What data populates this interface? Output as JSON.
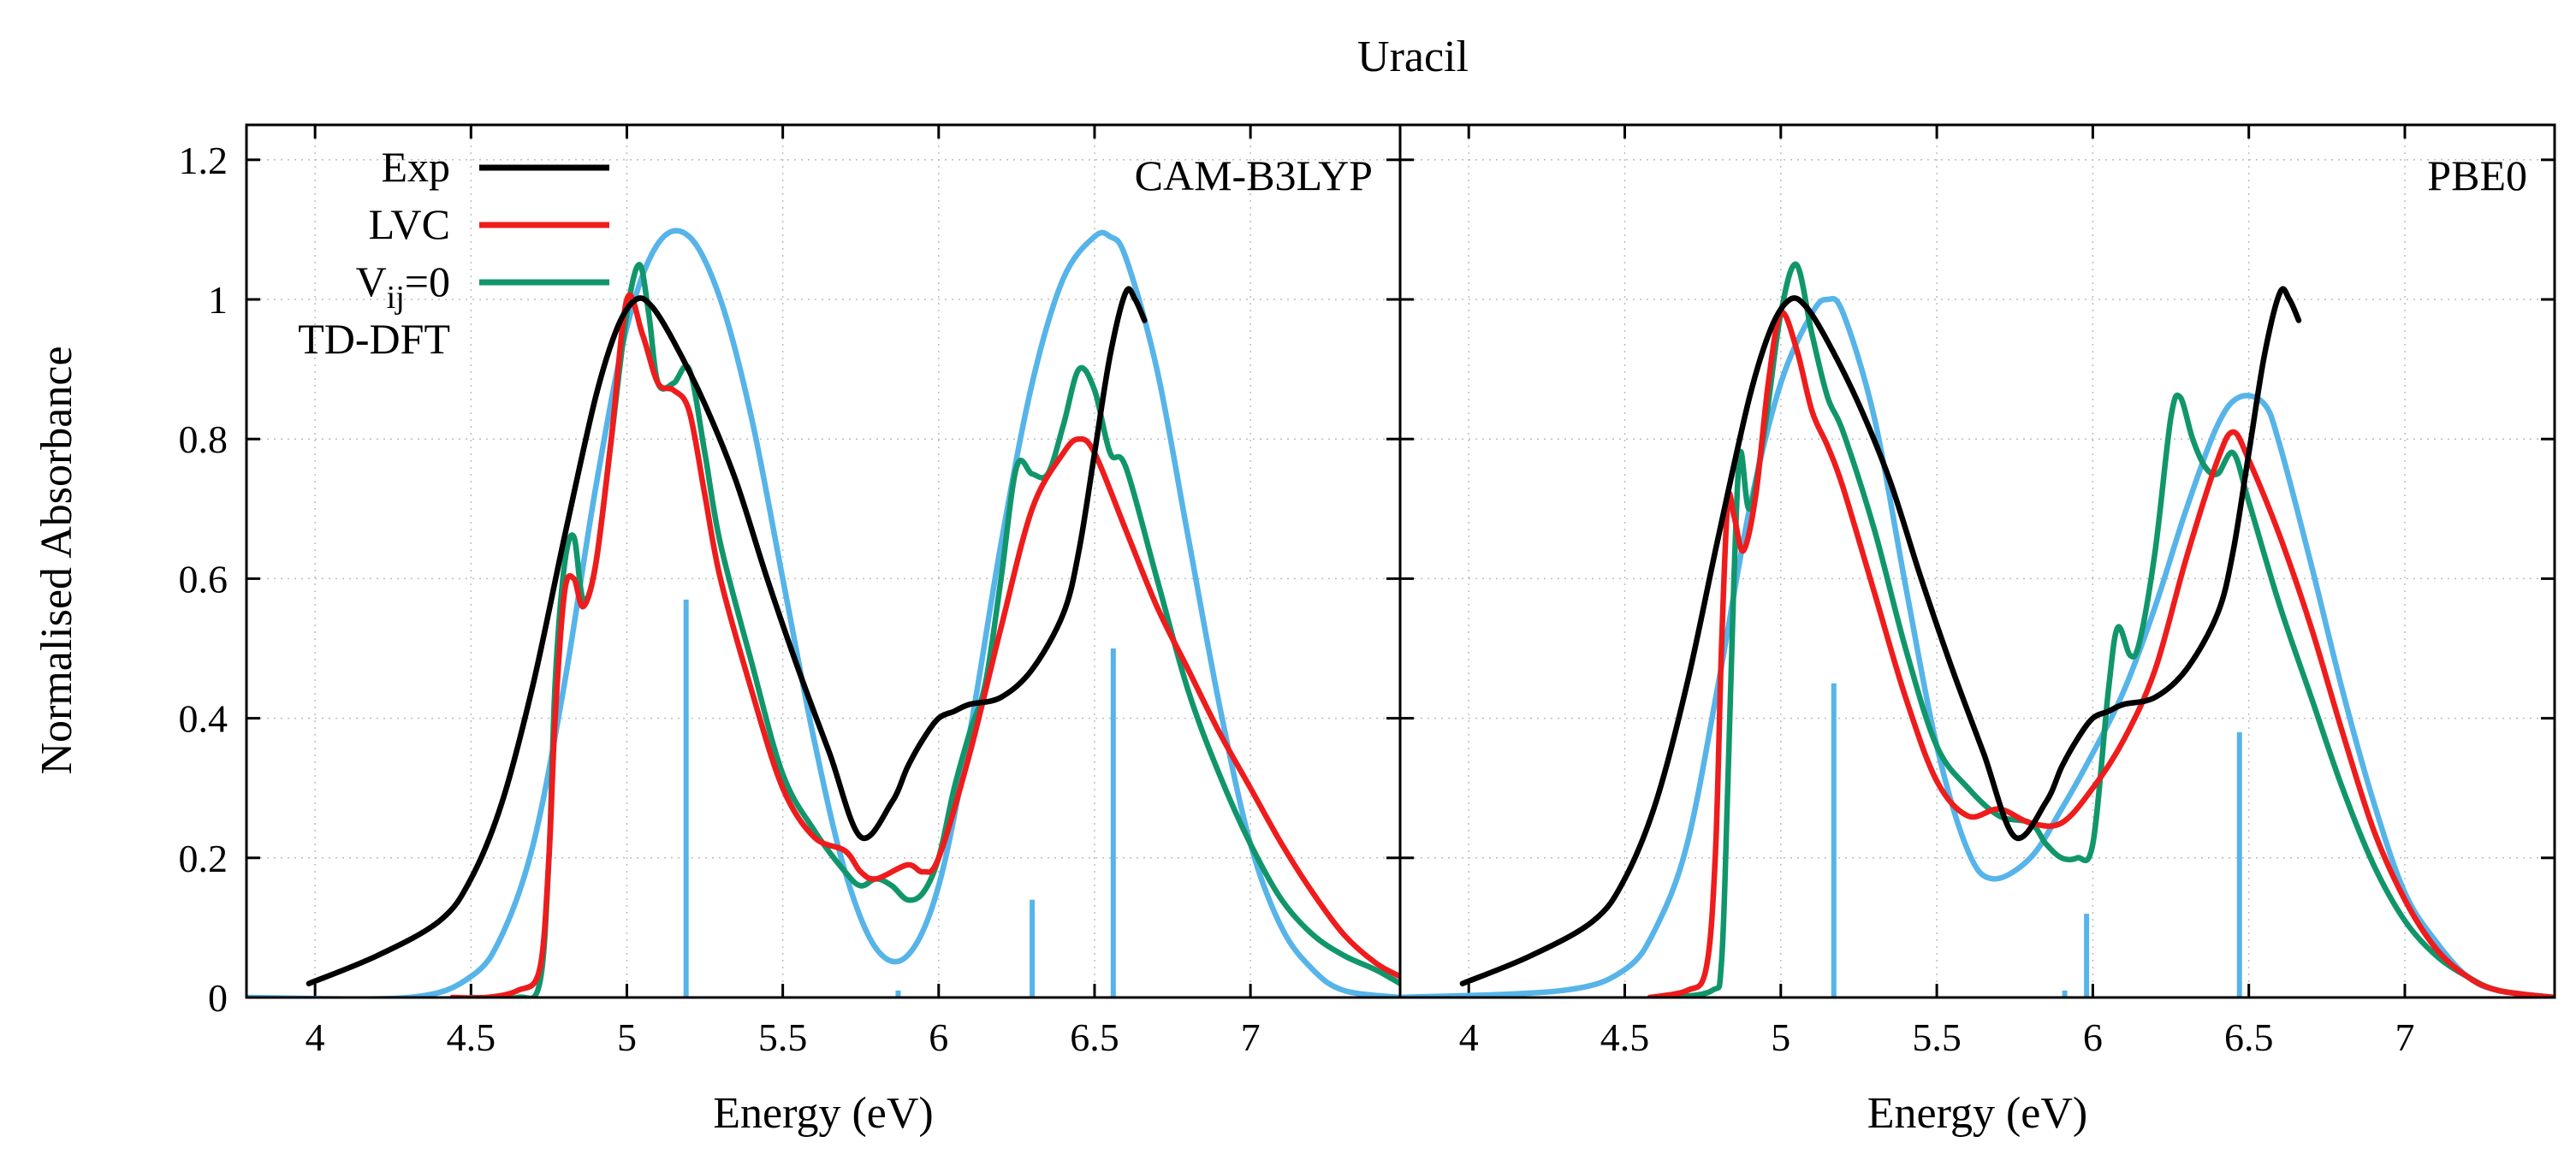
{
  "title": "Uracil",
  "ylabel": "Normalised Absorbance",
  "colors": {
    "Exp": "#000000",
    "LVC": "#ee1c1c",
    "Vij0": "#11966b",
    "TDDFT": "#56b4e9"
  },
  "legend": [
    {
      "key": "Exp",
      "label_main": "Exp",
      "label_sub": "",
      "label_tail": ""
    },
    {
      "key": "LVC",
      "label_main": "LVC",
      "label_sub": "",
      "label_tail": ""
    },
    {
      "key": "Vij0",
      "label_main": "V",
      "label_sub": "ij",
      "label_tail": "=0"
    },
    {
      "key": "TDDFT",
      "label_main": "TD-DFT",
      "label_sub": "",
      "label_tail": ""
    }
  ],
  "chart_data": [
    {
      "type": "line",
      "panel_label": "CAM-B3LYP",
      "xlabel": "Energy (eV)",
      "xlim": [
        3.78,
        7.48
      ],
      "ylim": [
        0,
        1.25
      ],
      "xticks": [
        4,
        4.5,
        5,
        5.5,
        6,
        6.5,
        7
      ],
      "xtick_labels": [
        "4",
        "4.5",
        "5",
        "5.5",
        "6",
        "6.5",
        "7"
      ],
      "yticks": [
        0,
        0.2,
        0.4,
        0.6,
        0.8,
        1,
        1.2
      ],
      "ytick_labels": [
        "0",
        "0.2",
        "0.4",
        "0.6",
        "0.8",
        "1",
        "1.2"
      ],
      "series": [
        {
          "name": "Exp",
          "x": [
            3.98,
            4.2,
            4.4,
            4.5,
            4.6,
            4.7,
            4.8,
            4.9,
            4.97,
            5.03,
            5.08,
            5.15,
            5.25,
            5.35,
            5.45,
            5.55,
            5.65,
            5.75,
            5.85,
            5.9,
            5.95,
            6.0,
            6.05,
            6.1,
            6.2,
            6.3,
            6.4,
            6.45,
            6.5,
            6.55,
            6.6,
            6.63,
            6.66
          ],
          "y": [
            0.02,
            0.06,
            0.11,
            0.17,
            0.28,
            0.45,
            0.66,
            0.86,
            0.96,
            1.0,
            0.99,
            0.94,
            0.85,
            0.74,
            0.6,
            0.47,
            0.35,
            0.23,
            0.28,
            0.33,
            0.37,
            0.4,
            0.41,
            0.42,
            0.43,
            0.47,
            0.55,
            0.64,
            0.78,
            0.92,
            1.01,
            1.0,
            0.97
          ]
        },
        {
          "name": "LVC",
          "x": [
            4.44,
            4.55,
            4.65,
            4.72,
            4.75,
            4.77,
            4.8,
            4.83,
            4.86,
            4.9,
            4.95,
            5.0,
            5.05,
            5.1,
            5.15,
            5.2,
            5.25,
            5.3,
            5.4,
            5.5,
            5.6,
            5.7,
            5.75,
            5.8,
            5.9,
            5.95,
            6.0,
            6.1,
            6.2,
            6.3,
            6.4,
            6.45,
            6.5,
            6.6,
            6.7,
            6.8,
            6.9,
            7.0,
            7.1,
            7.2,
            7.3,
            7.4,
            7.48
          ],
          "y": [
            0,
            0.0,
            0.01,
            0.04,
            0.2,
            0.4,
            0.58,
            0.6,
            0.56,
            0.62,
            0.8,
            1.0,
            0.95,
            0.88,
            0.87,
            0.84,
            0.72,
            0.6,
            0.44,
            0.3,
            0.23,
            0.21,
            0.18,
            0.17,
            0.19,
            0.18,
            0.2,
            0.35,
            0.53,
            0.7,
            0.78,
            0.8,
            0.78,
            0.67,
            0.56,
            0.47,
            0.38,
            0.3,
            0.22,
            0.15,
            0.09,
            0.05,
            0.03
          ]
        },
        {
          "name": "Vij0",
          "x": [
            4.5,
            4.65,
            4.72,
            4.75,
            4.77,
            4.8,
            4.83,
            4.86,
            4.9,
            4.95,
            5.0,
            5.04,
            5.07,
            5.1,
            5.15,
            5.2,
            5.25,
            5.3,
            5.4,
            5.5,
            5.6,
            5.7,
            5.75,
            5.8,
            5.85,
            5.9,
            5.95,
            6.0,
            6.05,
            6.1,
            6.15,
            6.2,
            6.25,
            6.3,
            6.35,
            6.4,
            6.45,
            6.5,
            6.55,
            6.6,
            6.7,
            6.8,
            6.9,
            7.0,
            7.1,
            7.2,
            7.3,
            7.4,
            7.48
          ],
          "y": [
            0,
            0.0,
            0.02,
            0.2,
            0.45,
            0.62,
            0.66,
            0.57,
            0.62,
            0.8,
            0.98,
            1.05,
            0.98,
            0.88,
            0.88,
            0.9,
            0.78,
            0.65,
            0.48,
            0.32,
            0.24,
            0.18,
            0.16,
            0.17,
            0.16,
            0.14,
            0.15,
            0.2,
            0.3,
            0.38,
            0.45,
            0.6,
            0.76,
            0.75,
            0.75,
            0.82,
            0.9,
            0.87,
            0.78,
            0.76,
            0.6,
            0.44,
            0.32,
            0.22,
            0.14,
            0.09,
            0.06,
            0.04,
            0.02
          ]
        },
        {
          "name": "TD-DFT",
          "x": [
            3.78,
            4.3,
            4.5,
            4.6,
            4.7,
            4.8,
            4.9,
            5.0,
            5.1,
            5.2,
            5.3,
            5.4,
            5.5,
            5.6,
            5.7,
            5.8,
            5.9,
            6.0,
            6.1,
            6.2,
            6.3,
            6.4,
            6.5,
            6.55,
            6.6,
            6.7,
            6.8,
            6.9,
            7.0,
            7.1,
            7.2,
            7.3,
            7.48
          ],
          "y": [
            0,
            0.0,
            0.03,
            0.09,
            0.22,
            0.45,
            0.73,
            0.96,
            1.08,
            1.09,
            1.0,
            0.83,
            0.6,
            0.37,
            0.18,
            0.07,
            0.06,
            0.16,
            0.38,
            0.65,
            0.88,
            1.03,
            1.09,
            1.09,
            1.06,
            0.9,
            0.66,
            0.42,
            0.22,
            0.1,
            0.04,
            0.01,
            0
          ]
        }
      ],
      "sticks": [
        {
          "x": 5.19,
          "y": 0.57
        },
        {
          "x": 5.87,
          "y": 0.01
        },
        {
          "x": 6.3,
          "y": 0.14
        },
        {
          "x": 6.56,
          "y": 0.5
        }
      ]
    },
    {
      "type": "line",
      "panel_label": "PBE0",
      "xlabel": "Energy (eV)",
      "xlim": [
        3.78,
        7.48
      ],
      "ylim": [
        0,
        1.25
      ],
      "xticks": [
        4,
        4.5,
        5,
        5.5,
        6,
        6.5,
        7
      ],
      "xtick_labels": [
        "4",
        "4.5",
        "5",
        "5.5",
        "6",
        "6.5",
        "7"
      ],
      "yticks": [
        0,
        0.2,
        0.4,
        0.6,
        0.8,
        1,
        1.2
      ],
      "ytick_labels": [
        "",
        "",
        "",
        "",
        "",
        "",
        ""
      ],
      "series": [
        {
          "name": "Exp",
          "x": [
            3.98,
            4.2,
            4.4,
            4.5,
            4.6,
            4.7,
            4.8,
            4.9,
            4.97,
            5.03,
            5.08,
            5.15,
            5.25,
            5.35,
            5.45,
            5.55,
            5.65,
            5.75,
            5.85,
            5.9,
            5.95,
            6.0,
            6.05,
            6.1,
            6.2,
            6.3,
            6.4,
            6.45,
            6.5,
            6.55,
            6.6,
            6.63,
            6.66
          ],
          "y": [
            0.02,
            0.06,
            0.11,
            0.17,
            0.28,
            0.45,
            0.66,
            0.86,
            0.96,
            1.0,
            0.99,
            0.94,
            0.85,
            0.74,
            0.6,
            0.47,
            0.35,
            0.23,
            0.28,
            0.33,
            0.37,
            0.4,
            0.41,
            0.42,
            0.43,
            0.47,
            0.55,
            0.64,
            0.78,
            0.92,
            1.01,
            1.0,
            0.97
          ]
        },
        {
          "name": "LVC",
          "x": [
            4.58,
            4.7,
            4.76,
            4.79,
            4.81,
            4.83,
            4.85,
            4.88,
            4.92,
            4.96,
            5.0,
            5.05,
            5.1,
            5.15,
            5.2,
            5.3,
            5.4,
            5.5,
            5.6,
            5.7,
            5.8,
            5.9,
            6.0,
            6.1,
            6.2,
            6.3,
            6.4,
            6.45,
            6.5,
            6.6,
            6.7,
            6.8,
            6.9,
            7.0,
            7.1,
            7.2,
            7.3,
            7.48
          ],
          "y": [
            0,
            0.01,
            0.04,
            0.2,
            0.5,
            0.71,
            0.69,
            0.64,
            0.72,
            0.88,
            0.98,
            0.93,
            0.84,
            0.79,
            0.73,
            0.58,
            0.43,
            0.31,
            0.26,
            0.27,
            0.25,
            0.25,
            0.3,
            0.37,
            0.47,
            0.63,
            0.77,
            0.81,
            0.77,
            0.66,
            0.53,
            0.38,
            0.24,
            0.14,
            0.07,
            0.03,
            0.01,
            0
          ]
        },
        {
          "name": "Vij0",
          "x": [
            4.65,
            4.78,
            4.81,
            4.83,
            4.85,
            4.87,
            4.9,
            4.95,
            5.0,
            5.05,
            5.1,
            5.15,
            5.2,
            5.3,
            5.4,
            5.5,
            5.6,
            5.7,
            5.8,
            5.85,
            5.9,
            5.95,
            6.0,
            6.05,
            6.08,
            6.12,
            6.15,
            6.2,
            6.25,
            6.28,
            6.32,
            6.36,
            6.4,
            6.45,
            6.5,
            6.6,
            6.7,
            6.8,
            6.9,
            7.0,
            7.1,
            7.2,
            7.3,
            7.48
          ],
          "y": [
            0,
            0.01,
            0.05,
            0.3,
            0.6,
            0.78,
            0.7,
            0.82,
            0.98,
            1.05,
            0.95,
            0.86,
            0.81,
            0.67,
            0.5,
            0.36,
            0.3,
            0.26,
            0.25,
            0.22,
            0.2,
            0.2,
            0.22,
            0.44,
            0.53,
            0.49,
            0.51,
            0.64,
            0.83,
            0.86,
            0.8,
            0.76,
            0.75,
            0.78,
            0.71,
            0.56,
            0.43,
            0.3,
            0.19,
            0.11,
            0.06,
            0.03,
            0.01,
            0
          ]
        },
        {
          "name": "TD-DFT",
          "x": [
            3.78,
            4.3,
            4.5,
            4.6,
            4.7,
            4.8,
            4.9,
            5.0,
            5.1,
            5.15,
            5.2,
            5.3,
            5.4,
            5.5,
            5.6,
            5.68,
            5.8,
            5.9,
            6.0,
            6.1,
            6.2,
            6.3,
            6.4,
            6.47,
            6.55,
            6.6,
            6.7,
            6.8,
            6.9,
            7.0,
            7.1,
            7.2,
            7.3,
            7.48
          ],
          "y": [
            0,
            0.01,
            0.04,
            0.1,
            0.22,
            0.45,
            0.7,
            0.88,
            0.98,
            1.0,
            0.98,
            0.83,
            0.59,
            0.36,
            0.21,
            0.17,
            0.2,
            0.27,
            0.35,
            0.44,
            0.56,
            0.7,
            0.82,
            0.86,
            0.85,
            0.79,
            0.62,
            0.44,
            0.28,
            0.15,
            0.08,
            0.03,
            0.01,
            0
          ]
        }
      ],
      "sticks": [
        {
          "x": 5.17,
          "y": 0.45
        },
        {
          "x": 5.91,
          "y": 0.01
        },
        {
          "x": 5.98,
          "y": 0.12
        },
        {
          "x": 6.47,
          "y": 0.38
        }
      ]
    }
  ]
}
